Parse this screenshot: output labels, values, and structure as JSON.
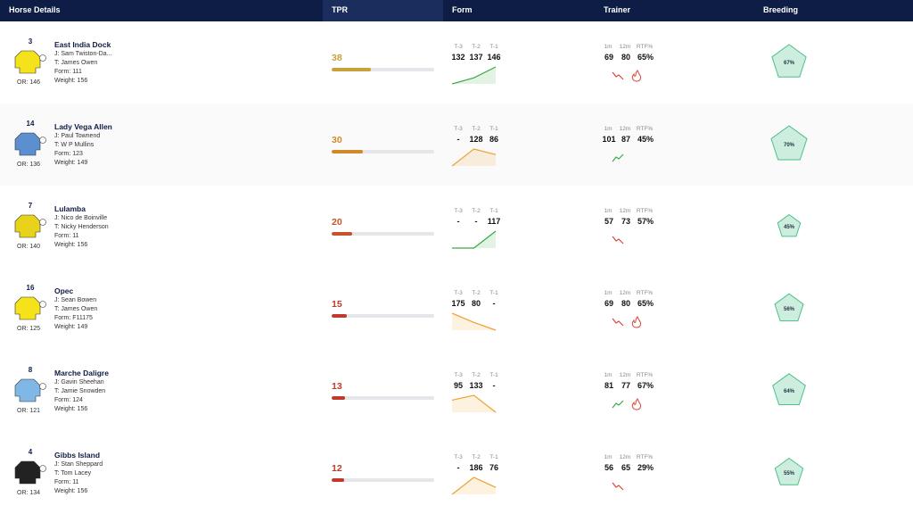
{
  "header": {
    "columns": [
      "Horse Details",
      "TPR",
      "Form",
      "Trainer",
      "Breeding"
    ]
  },
  "form_labels": [
    "T-3",
    "T-2",
    "T-1"
  ],
  "trainer_labels": [
    "1m",
    "12m",
    "RTF%"
  ],
  "rows": [
    {
      "number": "3",
      "name": "East India Dock",
      "jockey": "J: Sam Twiston-Da...",
      "trainer": "T: James Owen",
      "form": "Form: 111",
      "weight": "Weight: 156",
      "rating": "OR: 146",
      "tpr": 38,
      "tpr_color": "#c9a13b",
      "form_values": [
        132,
        137,
        146
      ],
      "form_color": "#3aa845",
      "trainer_values": [
        "69",
        "80",
        "65%"
      ],
      "trainer_trend": "down",
      "hot": true,
      "breeding": "67%",
      "silk_color": "#f5e21a"
    },
    {
      "number": "14",
      "name": "Lady Vega Allen",
      "jockey": "J: Paul Townend",
      "trainer": "T: W P Mullins",
      "form": "Form: 123",
      "weight": "Weight: 149",
      "rating": "OR: 136",
      "tpr": 30,
      "tpr_color": "#d08a2a",
      "form_values": [
        "-",
        128,
        86
      ],
      "form_color": "#f0a030",
      "trainer_values": [
        "101",
        "87",
        "45%"
      ],
      "trainer_trend": "up",
      "hot": false,
      "breeding": "70%",
      "silk_color": "#5b8fd0"
    },
    {
      "number": "7",
      "name": "Lulamba",
      "jockey": "J: Nico de Boinville",
      "trainer": "T: Nicky Henderson",
      "form": "Form: 11",
      "weight": "Weight: 156",
      "rating": "OR: 140",
      "tpr": 20,
      "tpr_color": "#c8532a",
      "form_values": [
        "-",
        "-",
        117
      ],
      "form_color": "#3aa845",
      "trainer_values": [
        "57",
        "73",
        "57%"
      ],
      "trainer_trend": "down",
      "hot": false,
      "breeding": "45%",
      "silk_color": "#e8d21a"
    },
    {
      "number": "16",
      "name": "Opec",
      "jockey": "J: Sean Bowen",
      "trainer": "T: James Owen",
      "form": "Form: F11175",
      "weight": "Weight: 149",
      "rating": "OR: 125",
      "tpr": 15,
      "tpr_color": "#c0392b",
      "form_values": [
        175,
        80,
        "-"
      ],
      "form_color": "#f0a030",
      "trainer_values": [
        "69",
        "80",
        "65%"
      ],
      "trainer_trend": "down",
      "hot": true,
      "breeding": "56%",
      "silk_color": "#f5e21a"
    },
    {
      "number": "8",
      "name": "Marche Daligre",
      "jockey": "J: Gavin Sheehan",
      "trainer": "T: Jamie Snowden",
      "form": "Form: 124",
      "weight": "Weight: 156",
      "rating": "OR: 121",
      "tpr": 13,
      "tpr_color": "#c0392b",
      "form_values": [
        95,
        133,
        "-"
      ],
      "form_color": "#f0a030",
      "trainer_values": [
        "81",
        "77",
        "67%"
      ],
      "trainer_trend": "up",
      "hot": true,
      "breeding": "64%",
      "silk_color": "#7fb8e6"
    },
    {
      "number": "4",
      "name": "Gibbs Island",
      "jockey": "J: Stan Sheppard",
      "trainer": "T: Tom Lacey",
      "form": "Form: 11",
      "weight": "Weight: 156",
      "rating": "OR: 134",
      "tpr": 12,
      "tpr_color": "#c0392b",
      "form_values": [
        "-",
        186,
        76
      ],
      "form_color": "#f0a030",
      "trainer_values": [
        "56",
        "65",
        "29%"
      ],
      "trainer_trend": "down",
      "hot": false,
      "breeding": "55%",
      "silk_color": "#222222"
    }
  ]
}
